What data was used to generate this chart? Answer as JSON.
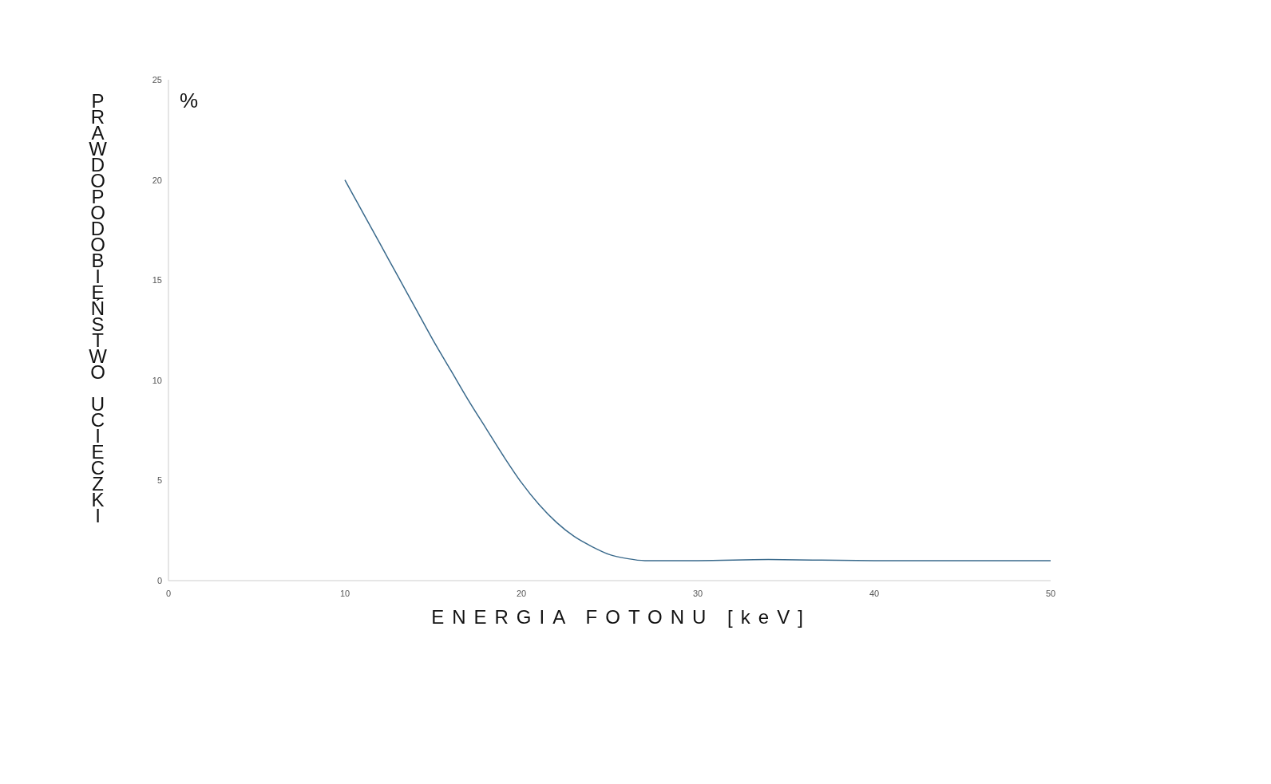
{
  "chart_data": {
    "type": "line",
    "xlabel": "ENERGIA FOTONU [keV]",
    "ylabel": "PRAWDOPODOBIEŃSTWO UCIECZKI",
    "annotations": [
      "%"
    ],
    "x": [
      10,
      11,
      12,
      13,
      14,
      15,
      16,
      17,
      18,
      19,
      20,
      21,
      22,
      23,
      24,
      25,
      26,
      27,
      28,
      30,
      34,
      40,
      50
    ],
    "series": [
      {
        "color": "#3a6a8c",
        "values": [
          20,
          18.4,
          16.8,
          15.2,
          13.6,
          12,
          10.5,
          9,
          7.6,
          6.2,
          4.9,
          3.8,
          2.9,
          2.2,
          1.7,
          1.3,
          1.1,
          1,
          1,
          1,
          1.05,
          1,
          1
        ]
      }
    ],
    "xlim": [
      0,
      50
    ],
    "xticks": [
      0,
      10,
      20,
      30,
      40,
      50
    ],
    "ylim": [
      0,
      25
    ],
    "yticks": [
      0,
      5,
      10,
      15,
      20,
      25
    ],
    "marker": "none",
    "line_style": "solid"
  }
}
